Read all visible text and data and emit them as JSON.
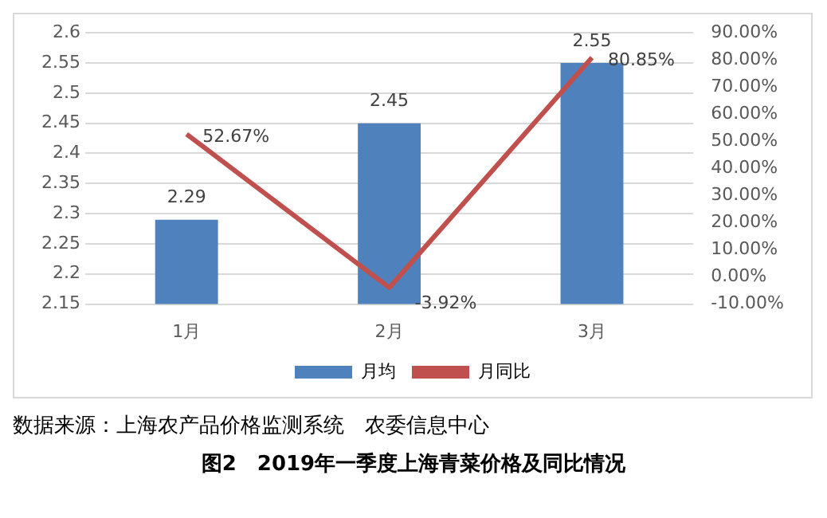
{
  "chart_data": {
    "type": "bar",
    "title": "图2　2019年一季度上海青菜价格及同比情况",
    "annotations": [
      "数据来源：上海农产品价格监测系统　农委信息中心"
    ],
    "categories": [
      "1月",
      "2月",
      "3月"
    ],
    "series": [
      {
        "name": "月均",
        "color": "#4f81bd",
        "values": [
          2.29,
          2.45,
          2.55
        ],
        "value_labels": [
          "2.29",
          "2.45",
          "2.55"
        ]
      },
      {
        "name": "月同比",
        "type": "line",
        "axis": "y2",
        "color": "#c0504d",
        "values": [
          52.67,
          -3.92,
          80.85
        ],
        "value_labels": [
          "52.67%",
          "-3.92%",
          "80.85%"
        ]
      }
    ],
    "ylim": [
      2.15,
      2.6
    ],
    "yticks": [
      2.15,
      2.2,
      2.25,
      2.3,
      2.35,
      2.4,
      2.45,
      2.5,
      2.55,
      2.6
    ],
    "y2lim": [
      -10,
      90
    ],
    "y2ticks": [
      {
        "value": -10,
        "label": "-10.00%"
      },
      {
        "value": 0,
        "label": "0.00%"
      },
      {
        "value": 10,
        "label": "10.00%"
      },
      {
        "value": 20,
        "label": "20.00%"
      },
      {
        "value": 30,
        "label": "30.00%"
      },
      {
        "value": 40,
        "label": "40.00%"
      },
      {
        "value": 50,
        "label": "50.00%"
      },
      {
        "value": 60,
        "label": "60.00%"
      },
      {
        "value": 70,
        "label": "70.00%"
      },
      {
        "value": 80,
        "label": "80.00%"
      },
      {
        "value": 90,
        "label": "90.00%"
      }
    ],
    "grid": "y",
    "legend": "bottom",
    "marker": "none"
  }
}
